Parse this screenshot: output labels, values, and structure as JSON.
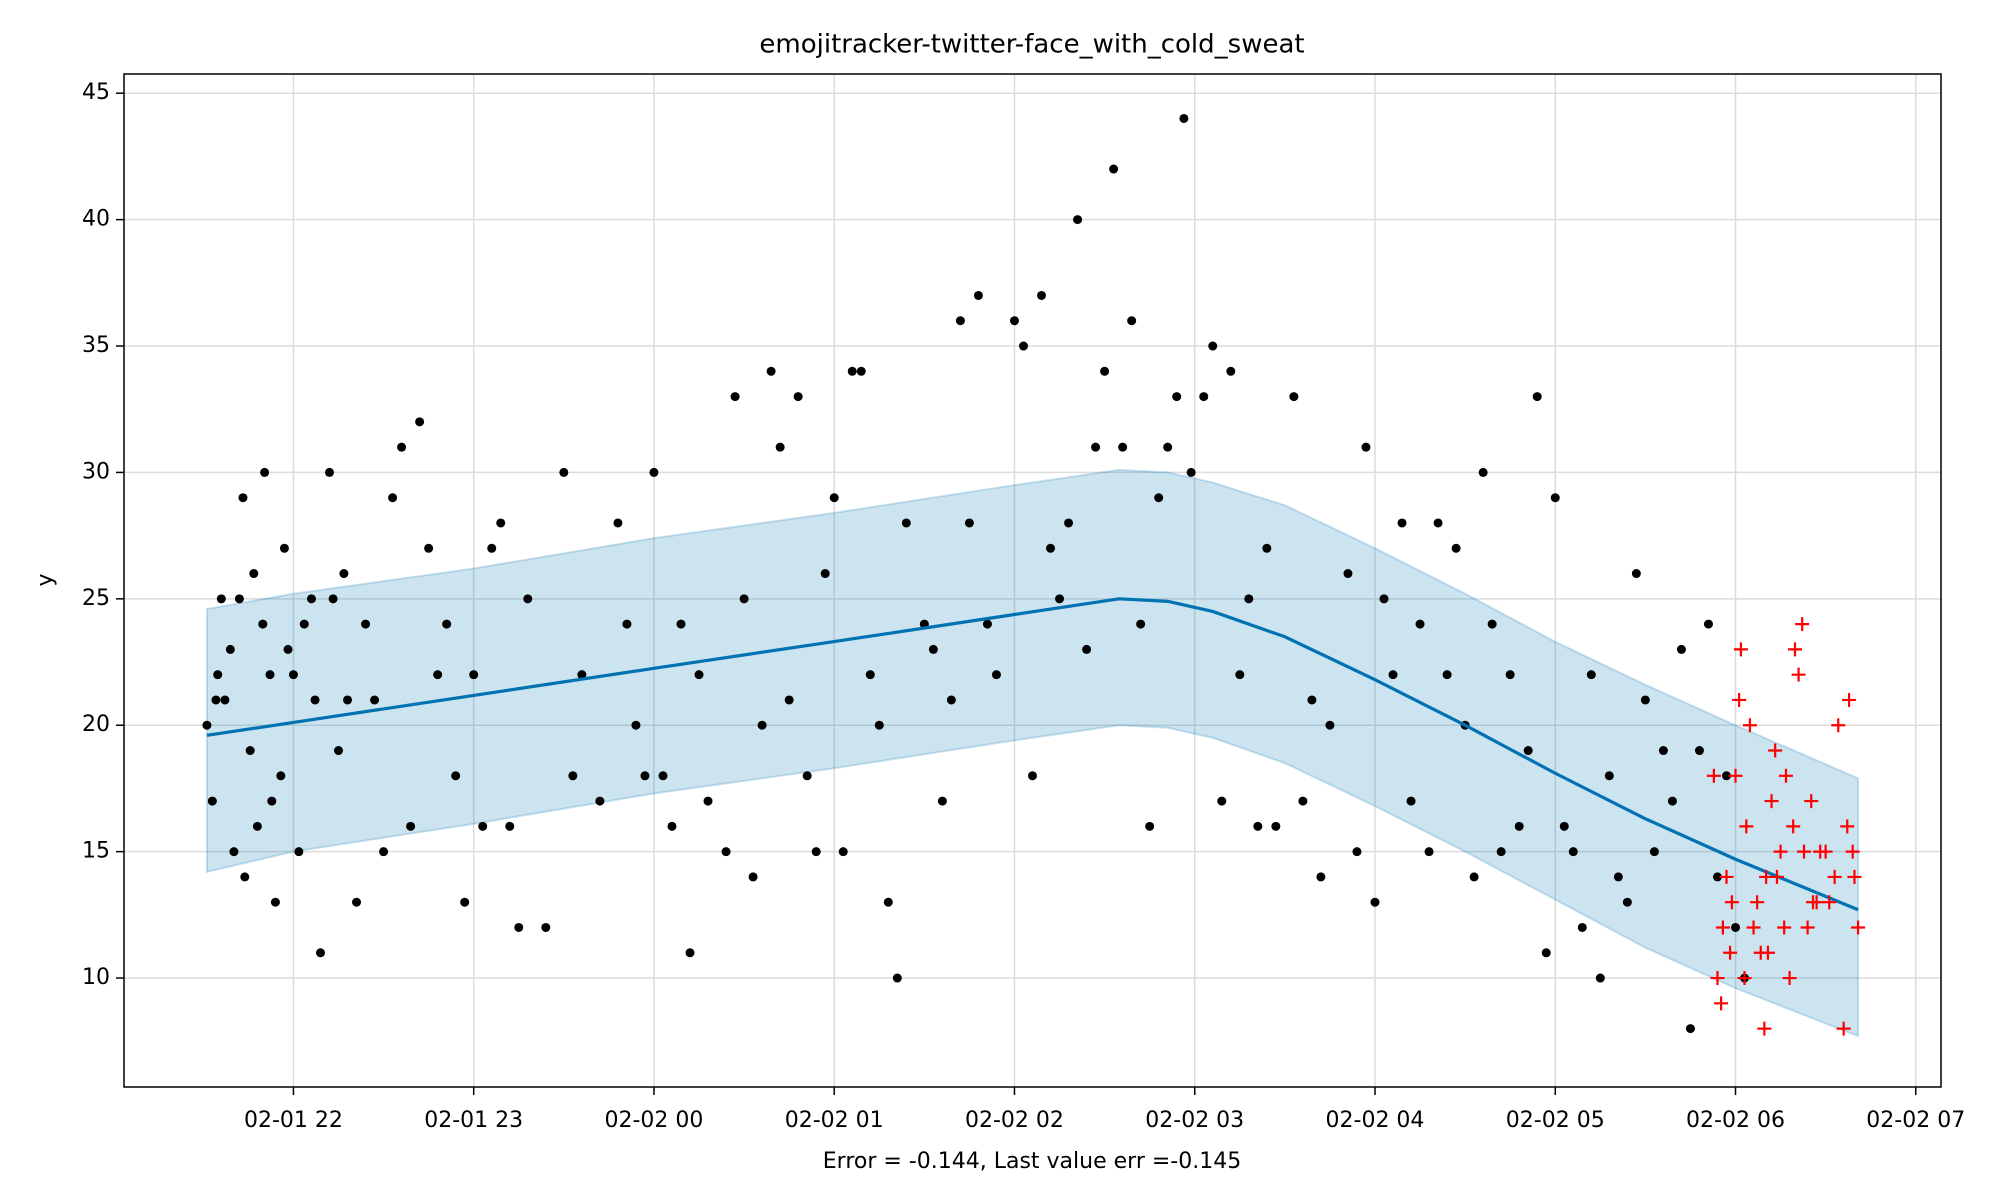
{
  "chart_data": {
    "type": "forecast",
    "title": "emojitracker-twitter-face_with_cold_sweat",
    "x_label": "Error = -0.144, Last value err =-0.145",
    "y_label": "y",
    "xlim": [
      21.06,
      31.14
    ],
    "ylim": [
      5.69,
      45.76
    ],
    "xticks": [
      {
        "value": 22,
        "label": "02-01 22"
      },
      {
        "value": 23,
        "label": "02-01 23"
      },
      {
        "value": 24,
        "label": "02-02 00"
      },
      {
        "value": 25,
        "label": "02-02 01"
      },
      {
        "value": 26,
        "label": "02-02 02"
      },
      {
        "value": 27,
        "label": "02-02 03"
      },
      {
        "value": 28,
        "label": "02-02 04"
      },
      {
        "value": 29,
        "label": "02-02 05"
      },
      {
        "value": 30,
        "label": "02-02 06"
      },
      {
        "value": 31,
        "label": "02-02 07"
      }
    ],
    "yticks": [
      10,
      15,
      20,
      25,
      30,
      35,
      40,
      45
    ],
    "grid": true,
    "forecast": {
      "color": "#0072B2",
      "band_color": "#0072B2",
      "x": [
        21.52,
        22,
        23,
        24,
        25,
        26,
        26.58,
        26.85,
        27.1,
        27.5,
        28,
        28.5,
        29,
        29.5,
        30,
        30.68
      ],
      "y": [
        19.6,
        20.11,
        21.18,
        22.25,
        23.31,
        24.38,
        25,
        24.9,
        24.5,
        23.5,
        21.8,
        20.0,
        18.1,
        16.3,
        14.7,
        12.7
      ],
      "upper": [
        24.6,
        25.2,
        26.2,
        27.4,
        28.4,
        29.5,
        30.1,
        30.0,
        29.6,
        28.7,
        27.0,
        25.2,
        23.3,
        21.6,
        20.0,
        17.9
      ],
      "lower": [
        14.2,
        15.0,
        16.1,
        17.3,
        18.3,
        19.4,
        20.0,
        19.9,
        19.5,
        18.5,
        16.8,
        15.0,
        13.1,
        11.2,
        9.6,
        7.7
      ]
    },
    "points": {
      "color": "#000000",
      "x": [
        21.52,
        21.55,
        21.57,
        21.58,
        21.6,
        21.62,
        21.65,
        21.67,
        21.7,
        21.72,
        21.73,
        21.76,
        21.78,
        21.8,
        21.83,
        21.84,
        21.87,
        21.88,
        21.9,
        21.93,
        21.95,
        21.97,
        22.0,
        22.03,
        22.06,
        22.1,
        22.12,
        22.15,
        22.2,
        22.22,
        22.25,
        22.28,
        22.3,
        22.35,
        22.4,
        22.45,
        22.5,
        22.55,
        22.6,
        22.65,
        22.7,
        22.75,
        22.8,
        22.85,
        22.9,
        22.95,
        23.0,
        23.05,
        23.1,
        23.15,
        23.2,
        23.25,
        23.3,
        23.4,
        23.5,
        23.55,
        23.6,
        23.7,
        23.8,
        23.85,
        23.9,
        23.95,
        24.0,
        24.05,
        24.1,
        24.15,
        24.2,
        24.25,
        24.3,
        24.4,
        24.45,
        24.5,
        24.55,
        24.6,
        24.65,
        24.7,
        24.75,
        24.8,
        24.85,
        24.9,
        24.95,
        25.0,
        25.05,
        25.1,
        25.15,
        25.2,
        25.25,
        25.3,
        25.35,
        25.4,
        25.5,
        25.55,
        25.6,
        25.65,
        25.7,
        25.75,
        25.8,
        25.85,
        25.9,
        26.0,
        26.05,
        26.1,
        26.15,
        26.2,
        26.25,
        26.3,
        26.35,
        26.4,
        26.45,
        26.5,
        26.55,
        26.6,
        26.65,
        26.7,
        26.75,
        26.8,
        26.85,
        26.9,
        26.94,
        26.98,
        27.05,
        27.1,
        27.15,
        27.2,
        27.25,
        27.3,
        27.35,
        27.4,
        27.45,
        27.55,
        27.6,
        27.65,
        27.7,
        27.75,
        27.85,
        27.9,
        27.95,
        28.0,
        28.05,
        28.1,
        28.15,
        28.2,
        28.25,
        28.3,
        28.35,
        28.4,
        28.45,
        28.5,
        28.55,
        28.6,
        28.65,
        28.7,
        28.75,
        28.8,
        28.85,
        28.9,
        28.95,
        29.0,
        29.05,
        29.1,
        29.15,
        29.2,
        29.25,
        29.3,
        29.35,
        29.4,
        29.45,
        29.5,
        29.55,
        29.6,
        29.65,
        29.7,
        29.75,
        29.8,
        29.85,
        29.9,
        29.95,
        30.0,
        30.05
      ],
      "y": [
        20,
        17,
        21,
        22,
        25,
        21,
        23,
        15,
        25,
        29,
        14,
        19,
        26,
        16,
        24,
        30,
        22,
        17,
        13,
        18,
        27,
        23,
        22,
        15,
        24,
        25,
        21,
        11,
        30,
        25,
        19,
        26,
        21,
        13,
        24,
        21,
        15,
        29,
        31,
        16,
        32,
        27,
        22,
        24,
        18,
        13,
        22,
        16,
        27,
        28,
        16,
        12,
        25,
        12,
        30,
        18,
        22,
        17,
        28,
        24,
        20,
        18,
        30,
        18,
        16,
        24,
        11,
        22,
        17,
        15,
        33,
        25,
        14,
        20,
        34,
        31,
        21,
        33,
        18,
        15,
        26,
        29,
        15,
        34,
        34,
        22,
        20,
        13,
        10,
        28,
        24,
        23,
        17,
        21,
        36,
        28,
        37,
        24,
        22,
        36,
        35,
        18,
        37,
        27,
        25,
        28,
        40,
        23,
        31,
        34,
        42,
        31,
        36,
        24,
        16,
        29,
        31,
        33,
        44,
        30,
        33,
        35,
        17,
        34,
        22,
        25,
        16,
        27,
        16,
        33,
        17,
        21,
        14,
        20,
        26,
        15,
        31,
        13,
        25,
        22,
        28,
        17,
        24,
        15,
        28,
        22,
        27,
        20,
        14,
        30,
        24,
        15,
        22,
        16,
        19,
        33,
        11,
        29,
        16,
        15,
        12,
        22,
        10,
        18,
        14,
        13,
        26,
        21,
        15,
        19,
        17,
        23,
        8,
        19,
        24,
        14,
        18,
        12,
        10
      ]
    },
    "test_points": {
      "color": "#ff0000",
      "x": [
        29.88,
        29.9,
        29.92,
        29.93,
        29.95,
        29.97,
        29.98,
        30.0,
        30.02,
        30.03,
        30.05,
        30.06,
        30.08,
        30.1,
        30.12,
        30.14,
        30.16,
        30.17,
        30.18,
        30.2,
        30.22,
        30.23,
        30.25,
        30.27,
        30.28,
        30.3,
        30.32,
        30.33,
        30.35,
        30.37,
        30.38,
        30.4,
        30.42,
        30.43,
        30.45,
        30.47,
        30.5,
        30.52,
        30.55,
        30.57,
        30.6,
        30.62,
        30.63,
        30.65,
        30.66,
        30.68
      ],
      "y": [
        18,
        10,
        9,
        12,
        14,
        11,
        13,
        18,
        21,
        23,
        10,
        16,
        20,
        12,
        13,
        11,
        8,
        14,
        11,
        17,
        19,
        14,
        15,
        12,
        18,
        10,
        16,
        23,
        22,
        24,
        15,
        12,
        17,
        13,
        13,
        15,
        15,
        13,
        14,
        20,
        8,
        16,
        21,
        15,
        14,
        12
      ]
    }
  }
}
